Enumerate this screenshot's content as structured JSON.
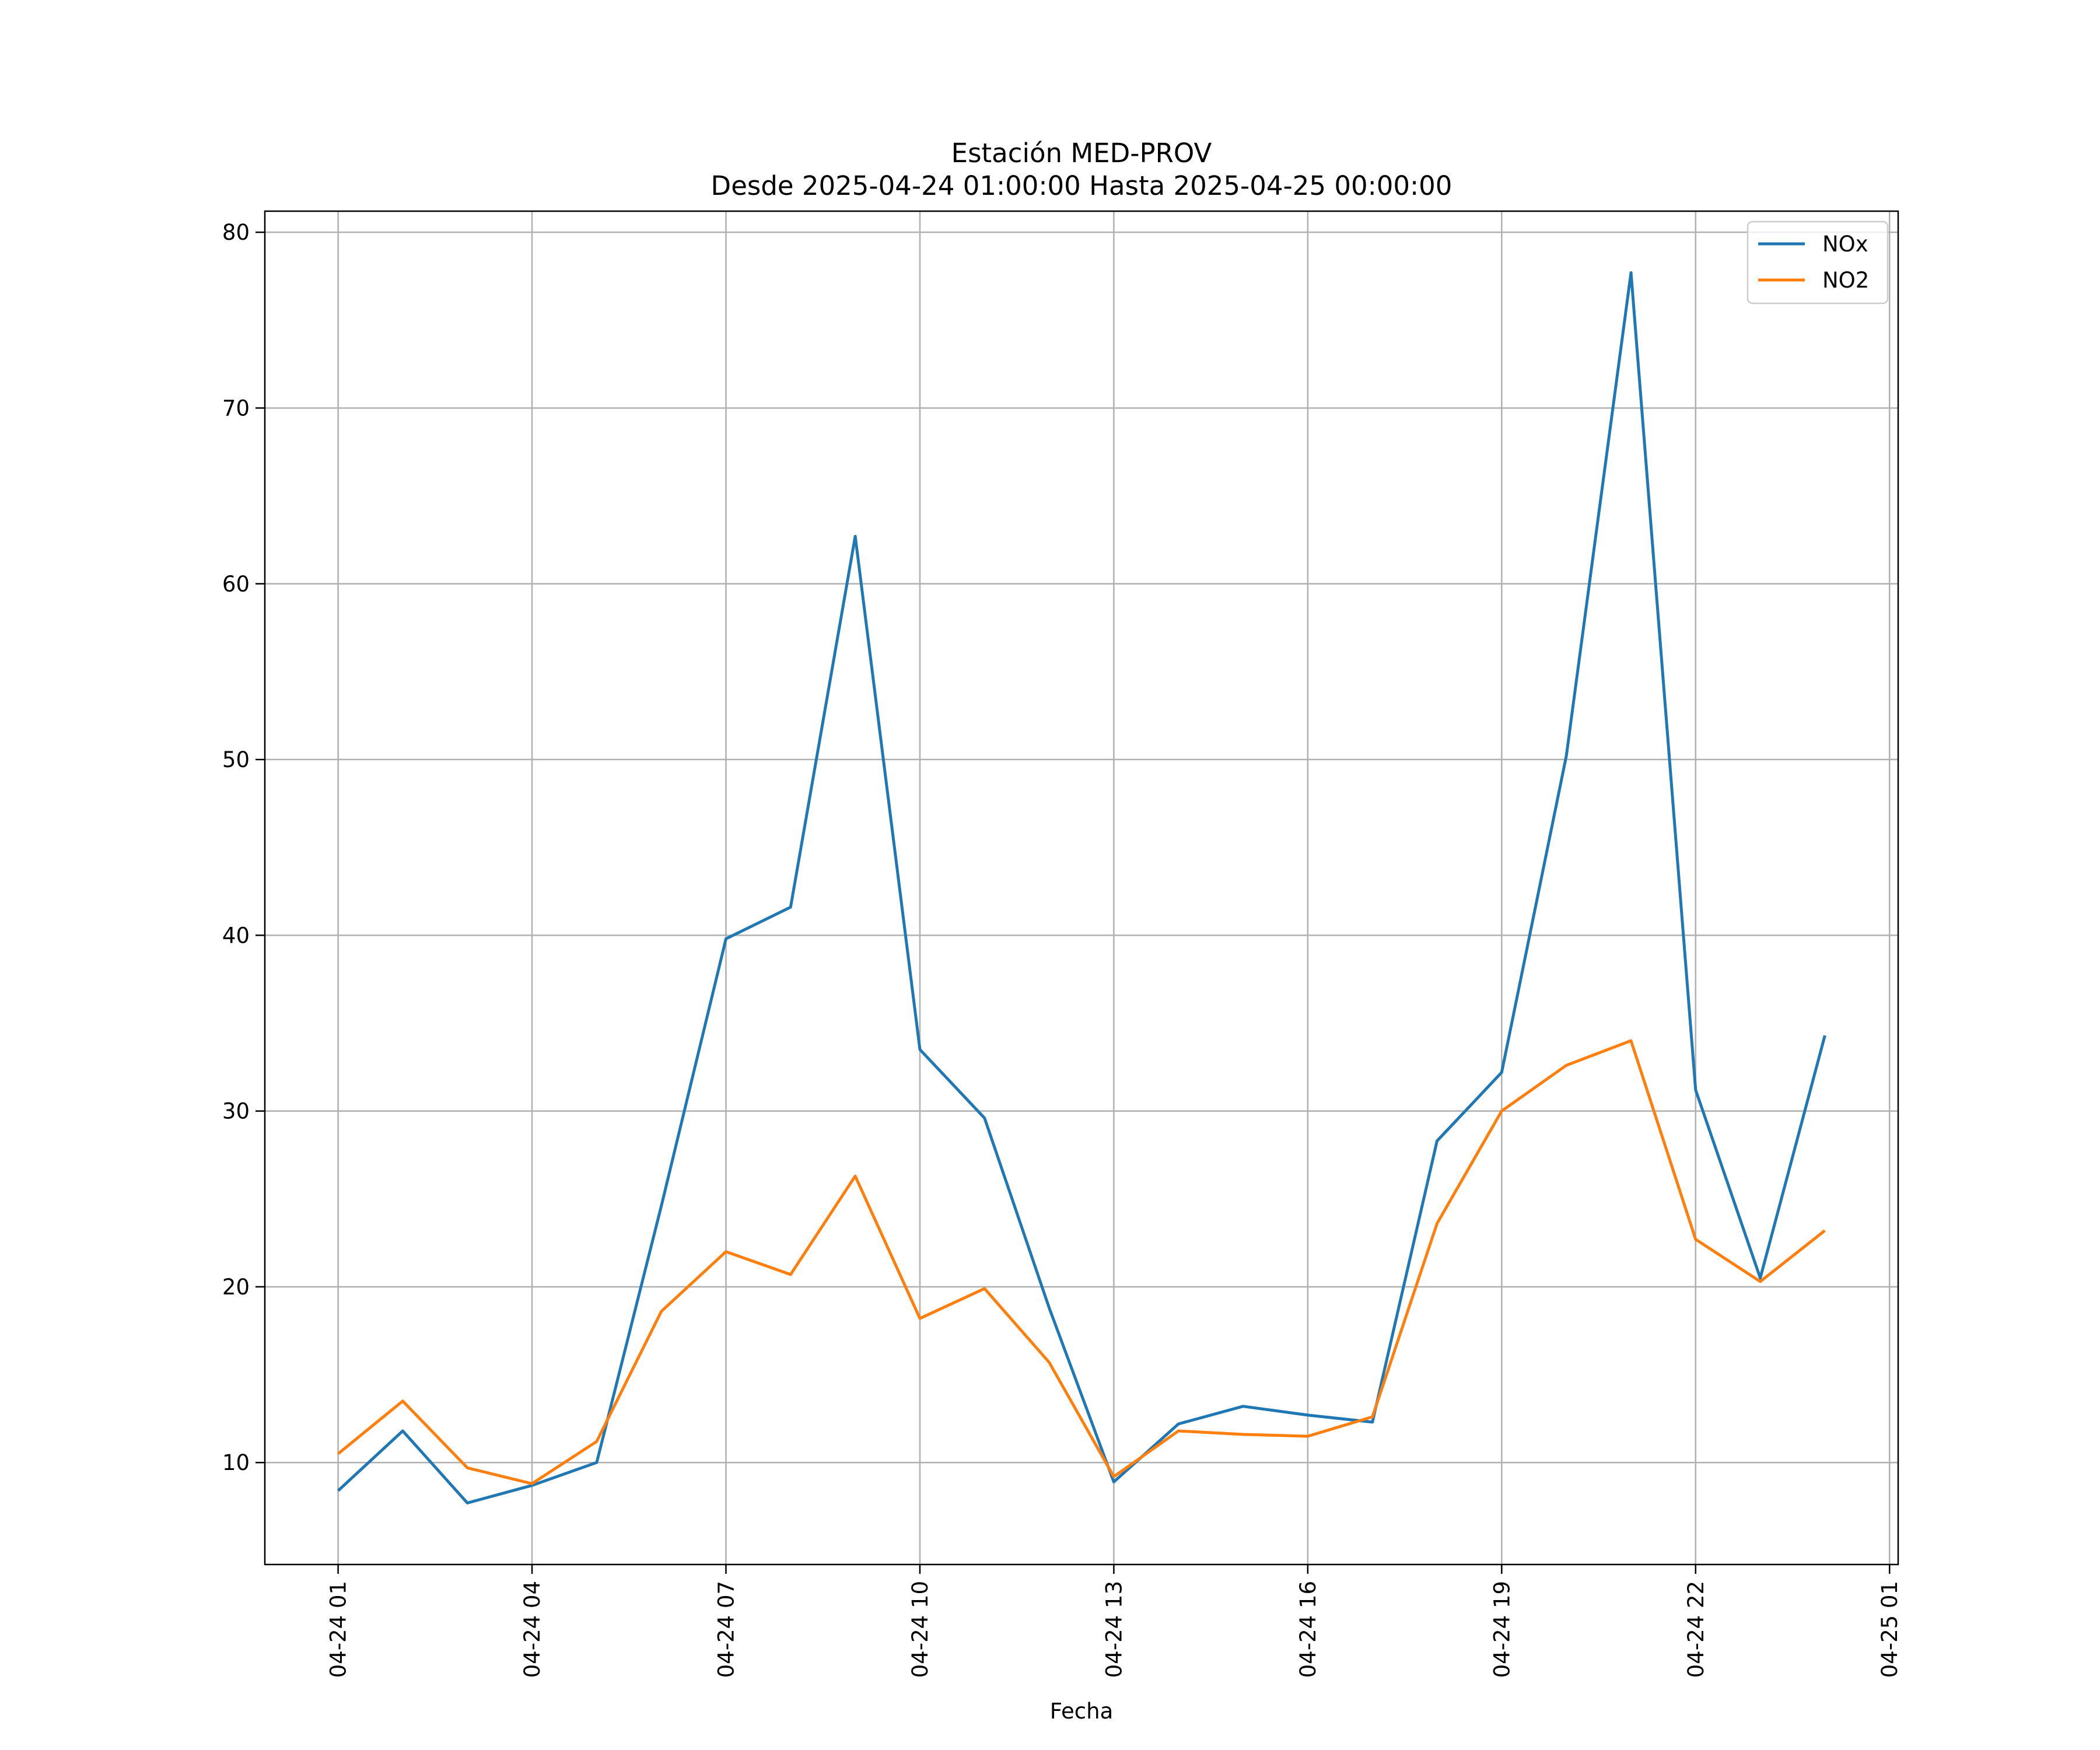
{
  "chart_data": {
    "type": "line",
    "title": "Estación MED-PROV",
    "subtitle": "Desde 2025-04-24 01:00:00 Hasta 2025-04-25 00:00:00",
    "xlabel": "Fecha",
    "ylabel": "",
    "x_ticks": [
      "04-24 01",
      "04-24 04",
      "04-24 07",
      "04-24 10",
      "04-24 13",
      "04-24 16",
      "04-24 19",
      "04-24 22",
      "04-25 01"
    ],
    "y_ticks": [
      10,
      20,
      30,
      40,
      50,
      60,
      70,
      80
    ],
    "xlim": [
      "2025-04-23 23:52",
      "2025-04-25 01:08"
    ],
    "ylim": [
      4.2,
      81.2
    ],
    "grid": true,
    "legend_position": "top-right",
    "x": [
      "2025-04-24 01:00",
      "2025-04-24 02:00",
      "2025-04-24 03:00",
      "2025-04-24 04:00",
      "2025-04-24 05:00",
      "2025-04-24 06:00",
      "2025-04-24 07:00",
      "2025-04-24 08:00",
      "2025-04-24 09:00",
      "2025-04-24 10:00",
      "2025-04-24 11:00",
      "2025-04-24 12:00",
      "2025-04-24 13:00",
      "2025-04-24 14:00",
      "2025-04-24 15:00",
      "2025-04-24 16:00",
      "2025-04-24 17:00",
      "2025-04-24 18:00",
      "2025-04-24 19:00",
      "2025-04-24 20:00",
      "2025-04-24 21:00",
      "2025-04-24 22:00",
      "2025-04-24 23:00",
      "2025-04-25 00:00"
    ],
    "series": [
      {
        "name": "NOx",
        "color": "#1f77b4",
        "values": [
          8.4,
          11.8,
          7.7,
          8.7,
          10.0,
          24.6,
          39.8,
          41.6,
          62.7,
          33.5,
          29.6,
          18.8,
          8.9,
          12.2,
          13.2,
          12.7,
          12.3,
          28.3,
          32.2,
          50.2,
          77.7,
          31.2,
          20.5,
          34.3
        ]
      },
      {
        "name": "NO2",
        "color": "#ff7f0e",
        "values": [
          10.5,
          13.5,
          9.7,
          8.8,
          11.2,
          18.6,
          22.0,
          20.7,
          26.3,
          18.2,
          19.9,
          15.7,
          9.2,
          11.8,
          11.6,
          11.5,
          12.6,
          23.6,
          30.0,
          32.6,
          34.0,
          22.7,
          20.3,
          23.2
        ]
      }
    ]
  }
}
